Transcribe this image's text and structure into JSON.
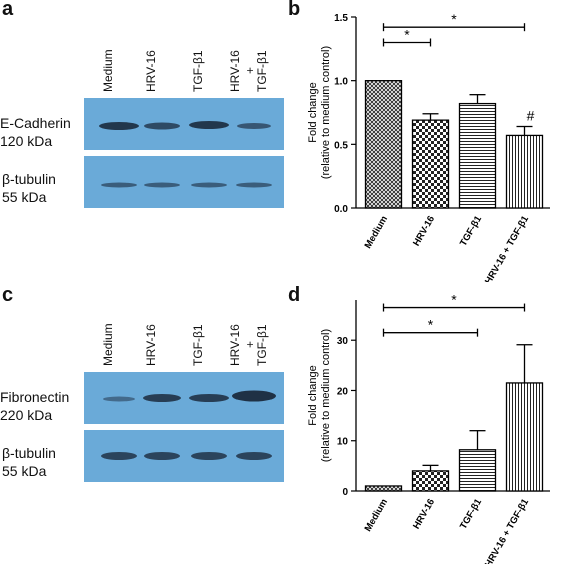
{
  "panels": {
    "a": {
      "letter": "a",
      "lanes": [
        "Medium",
        "HRV-16",
        "TGF-β1",
        "HRV-16",
        "+",
        "TGF-β1"
      ],
      "blot1": {
        "label_line1": "E-Cadherin",
        "label_line2": "120 kDa"
      },
      "blot2": {
        "label_line1": "β-tubulin",
        "label_line2": "55 kDa"
      },
      "colors": {
        "membrane": "#6aaad8",
        "band": "#1b2a3d"
      }
    },
    "c": {
      "letter": "c",
      "lanes": [
        "Medium",
        "HRV-16",
        "TGF-β1",
        "HRV-16",
        "+",
        "TGF-β1"
      ],
      "blot1": {
        "label_line1": "Fibronectin",
        "label_line2": "220 kDa"
      },
      "blot2": {
        "label_line1": "β-tubulin",
        "label_line2": "55 kDa"
      }
    },
    "b": {
      "letter": "b"
    },
    "d": {
      "letter": "d"
    }
  },
  "chart_data": [
    {
      "panel": "b",
      "type": "bar",
      "categories": [
        "Medium",
        "HRV-16",
        "TGF-β1",
        "HRV-16 + TGF-β1"
      ],
      "values": [
        1.0,
        0.69,
        0.82,
        0.57
      ],
      "errors": [
        0,
        0.05,
        0.07,
        0.07
      ],
      "patterns": [
        "crosshatch",
        "checker",
        "horizontal",
        "vertical"
      ],
      "ylabel_line1": "Fold change",
      "ylabel_line2": "(relative to medium control)",
      "ylim": [
        0,
        1.5
      ],
      "yticks": [
        "0.0",
        "0.5",
        "1.0",
        "1.5"
      ],
      "ytick_values": [
        0,
        0.5,
        1.0,
        1.5
      ],
      "annotations": [
        {
          "type": "bracket",
          "from": 0,
          "to": 1,
          "label": "*",
          "y": 1.3
        },
        {
          "type": "bracket",
          "from": 0,
          "to": 3,
          "label": "*",
          "y": 1.42
        },
        {
          "type": "marker",
          "category": 3,
          "label": "#"
        }
      ]
    },
    {
      "panel": "d",
      "type": "bar",
      "categories": [
        "Medium",
        "HRV-16",
        "TGF-β1",
        "HRV-16 + TGF-β1"
      ],
      "values": [
        1.0,
        4.0,
        8.2,
        21.5
      ],
      "errors": [
        0,
        1.1,
        3.8,
        7.6
      ],
      "patterns": [
        "crosshatch",
        "checker",
        "horizontal",
        "vertical"
      ],
      "ylabel_line1": "Fold change",
      "ylabel_line2": "(relative to medium control)",
      "ylim": [
        0,
        38
      ],
      "yticks": [
        "0",
        "10",
        "20",
        "30"
      ],
      "ytick_values": [
        0,
        10,
        20,
        30
      ],
      "annotations": [
        {
          "type": "bracket",
          "from": 0,
          "to": 2,
          "label": "*",
          "y": 31.5
        },
        {
          "type": "bracket",
          "from": 0,
          "to": 3,
          "label": "*",
          "y": 36.5
        }
      ]
    }
  ]
}
